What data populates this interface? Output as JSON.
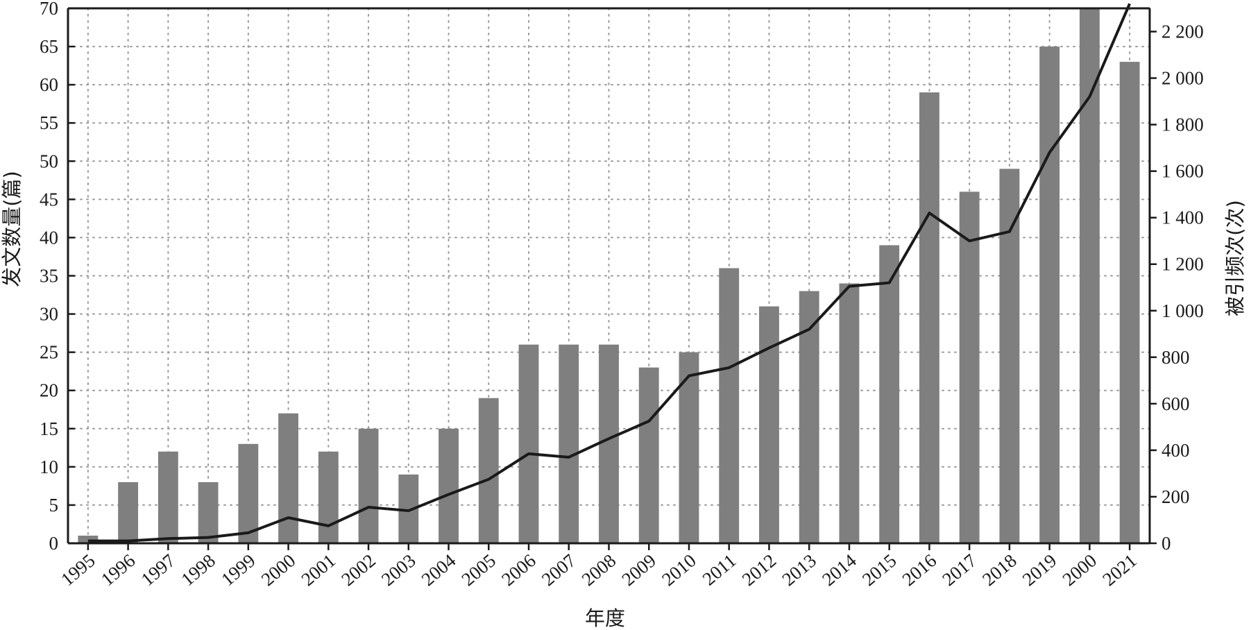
{
  "chart_data": {
    "type": "bar",
    "xlabel": "年度",
    "ylabel": "发文数量(篇)",
    "y2label": "被引频次(次)",
    "categories": [
      "1995",
      "1996",
      "1997",
      "1998",
      "1999",
      "2000",
      "2001",
      "2002",
      "2003",
      "2004",
      "2005",
      "2006",
      "2007",
      "2008",
      "2009",
      "2010",
      "2011",
      "2012",
      "2013",
      "2014",
      "2015",
      "2016",
      "2017",
      "2018",
      "2019",
      "2000",
      "2021"
    ],
    "series": [
      {
        "type": "bar",
        "axis": "left",
        "color": "#7f7f7f",
        "values": [
          1,
          8,
          12,
          8,
          13,
          17,
          12,
          15,
          9,
          15,
          19,
          26,
          26,
          26,
          23,
          25,
          36,
          31,
          33,
          34,
          39,
          59,
          46,
          49,
          65,
          70,
          63
        ]
      },
      {
        "type": "line",
        "axis": "right",
        "color": "#1a1a1a",
        "values": [
          10,
          10,
          20,
          25,
          45,
          110,
          75,
          155,
          140,
          210,
          275,
          385,
          370,
          450,
          525,
          720,
          755,
          840,
          920,
          1105,
          1120,
          1420,
          1300,
          1340,
          1680,
          1920,
          2320
        ]
      }
    ],
    "ylim": [
      0,
      70
    ],
    "y_ticks": [
      0,
      5,
      10,
      15,
      20,
      25,
      30,
      35,
      40,
      45,
      50,
      55,
      60,
      65,
      70
    ],
    "y_tick_labels": [
      "0",
      "5",
      "10",
      "15",
      "20",
      "25",
      "30",
      "35",
      "40",
      "45",
      "50",
      "55",
      "60",
      "65",
      "70"
    ],
    "y2lim": [
      0,
      2300
    ],
    "y2_ticks": [
      0,
      200,
      400,
      600,
      800,
      1000,
      1200,
      1400,
      1600,
      1800,
      2000,
      2200
    ],
    "y2_tick_labels": [
      "0",
      "200",
      "400",
      "600",
      "800",
      "1 000",
      "1 200",
      "1 400",
      "1 600",
      "1 800",
      "2 000",
      "2 200"
    ],
    "grid": true,
    "legend": "none"
  }
}
